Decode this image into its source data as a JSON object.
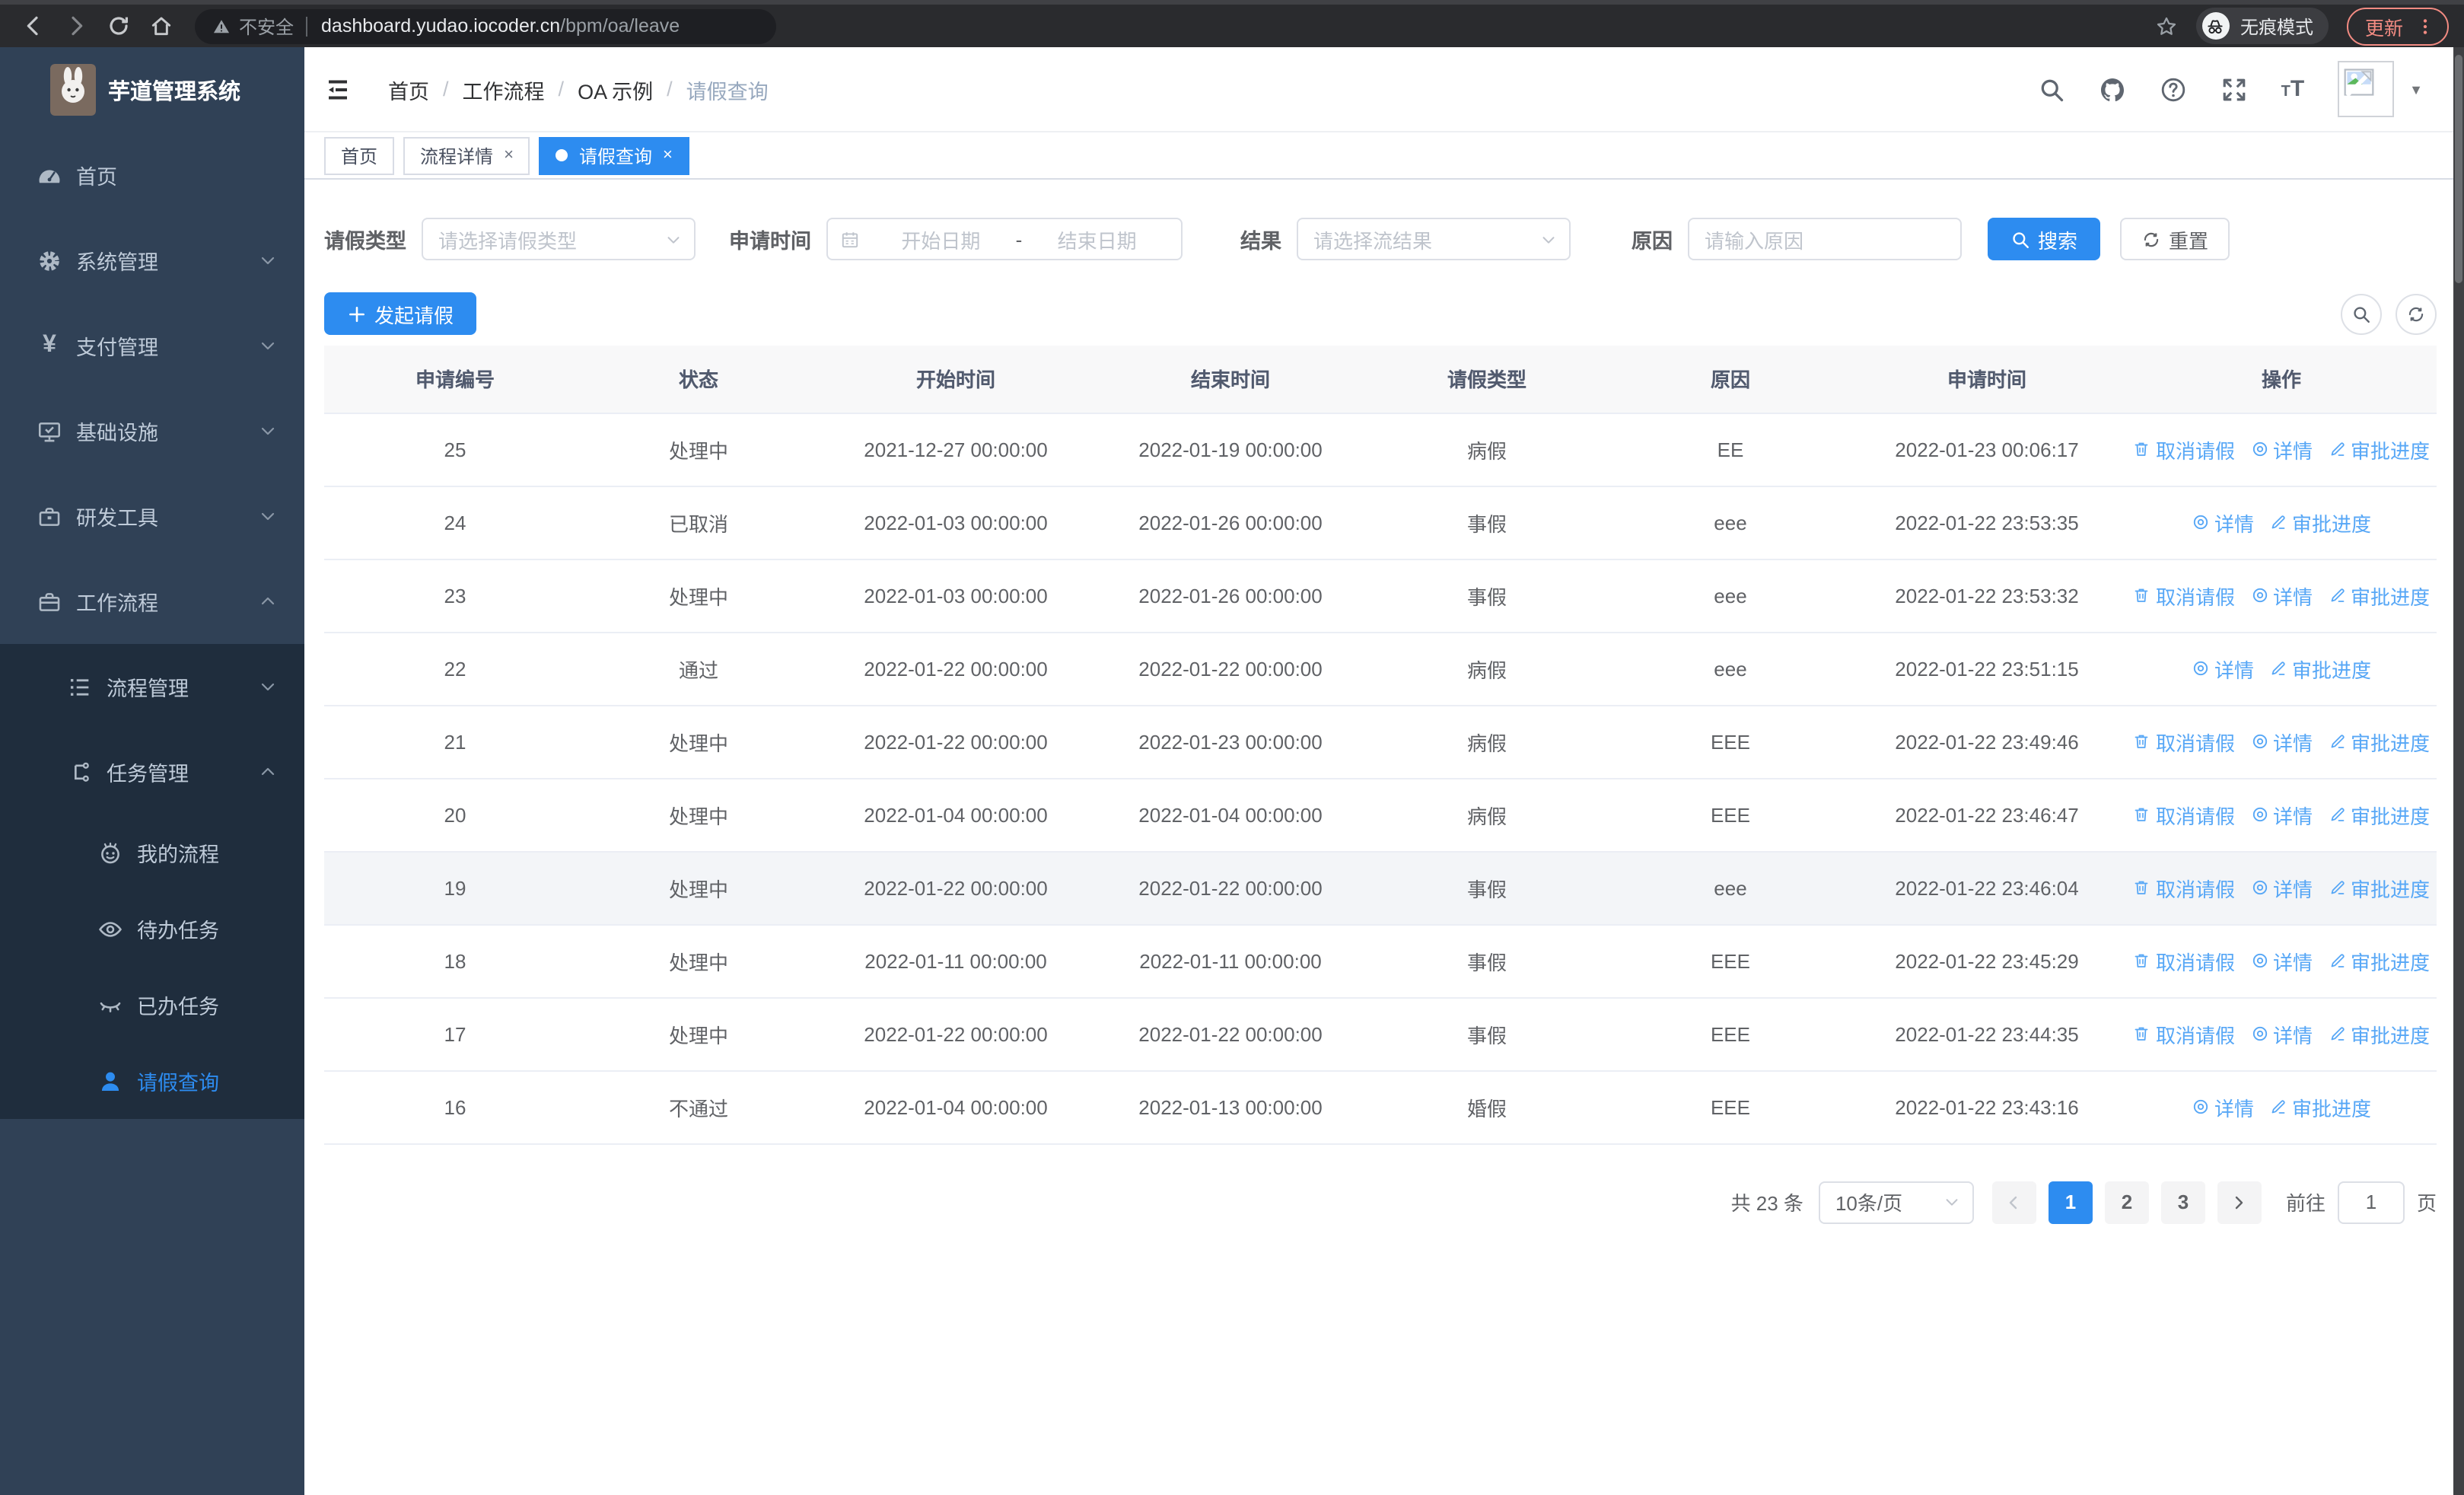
{
  "colors": {
    "primary": "#2d8cf0",
    "link_blue": "#57a7f6",
    "sidebar_bg": "#304156",
    "submenu_bg": "#1f2d3d",
    "update_accent": "#f28b82"
  },
  "browser": {
    "security_label": "不安全",
    "url_host": "dashboard.yudao.iocoder.cn",
    "url_path": "/bpm/oa/leave",
    "incognito_label": "无痕模式",
    "update_label": "更新"
  },
  "sidebar": {
    "title": "芋道管理系统",
    "items": [
      {
        "label": "首页",
        "icon": "gauge",
        "level": 1,
        "group": "top",
        "chevron": "",
        "active": false
      },
      {
        "label": "系统管理",
        "icon": "gear",
        "level": 1,
        "group": "top",
        "chevron": "down",
        "active": false
      },
      {
        "label": "支付管理",
        "icon": "yen",
        "level": 1,
        "group": "top",
        "chevron": "down",
        "active": false
      },
      {
        "label": "基础设施",
        "icon": "monitor",
        "level": 1,
        "group": "top",
        "chevron": "down",
        "active": false
      },
      {
        "label": "研发工具",
        "icon": "toolbox",
        "level": 1,
        "group": "top",
        "chevron": "down",
        "active": false
      },
      {
        "label": "工作流程",
        "icon": "briefcase",
        "level": 1,
        "group": "top",
        "chevron": "up",
        "active": false
      },
      {
        "label": "流程管理",
        "icon": "list",
        "level": 2,
        "group": "sub",
        "chevron": "down",
        "active": false
      },
      {
        "label": "任务管理",
        "icon": "flow",
        "level": 2,
        "group": "sub",
        "chevron": "up",
        "active": false
      },
      {
        "label": "我的流程",
        "icon": "robot",
        "level": 3,
        "group": "sub",
        "chevron": "",
        "active": false
      },
      {
        "label": "待办任务",
        "icon": "eye",
        "level": 3,
        "group": "sub",
        "chevron": "",
        "active": false
      },
      {
        "label": "已办任务",
        "icon": "eye-closed",
        "level": 3,
        "group": "sub",
        "chevron": "",
        "active": false
      },
      {
        "label": "请假查询",
        "icon": "user",
        "level": 3,
        "group": "sub",
        "chevron": "",
        "active": true
      }
    ]
  },
  "header": {
    "breadcrumb": [
      "首页",
      "工作流程",
      "OA 示例",
      "请假查询"
    ]
  },
  "tabs": [
    {
      "label": "首页",
      "closable": false,
      "active": false
    },
    {
      "label": "流程详情",
      "closable": true,
      "active": false
    },
    {
      "label": "请假查询",
      "closable": true,
      "active": true
    }
  ],
  "filters": {
    "leave_type_label": "请假类型",
    "leave_type_placeholder": "请选择请假类型",
    "apply_time_label": "申请时间",
    "start_date_placeholder": "开始日期",
    "date_separator": "-",
    "end_date_placeholder": "结束日期",
    "result_label": "结果",
    "result_placeholder": "请选择流结果",
    "reason_label": "原因",
    "reason_placeholder": "请输入原因",
    "search_label": "搜索",
    "reset_label": "重置"
  },
  "toolbar": {
    "create_label": "发起请假"
  },
  "table": {
    "columns": [
      "申请编号",
      "状态",
      "开始时间",
      "结束时间",
      "请假类型",
      "原因",
      "申请时间",
      "操作"
    ],
    "action_labels": {
      "cancel": "取消请假",
      "detail": "详情",
      "progress": "审批进度"
    },
    "rows": [
      {
        "id": "25",
        "status": "处理中",
        "start": "2021-12-27 00:00:00",
        "end": "2022-01-19 00:00:00",
        "type": "病假",
        "reason": "EE",
        "apply_time": "2022-01-23 00:06:17",
        "actions": [
          "cancel",
          "detail",
          "progress"
        ],
        "highlighted": false
      },
      {
        "id": "24",
        "status": "已取消",
        "start": "2022-01-03 00:00:00",
        "end": "2022-01-26 00:00:00",
        "type": "事假",
        "reason": "eee",
        "apply_time": "2022-01-22 23:53:35",
        "actions": [
          "detail",
          "progress"
        ],
        "highlighted": false
      },
      {
        "id": "23",
        "status": "处理中",
        "start": "2022-01-03 00:00:00",
        "end": "2022-01-26 00:00:00",
        "type": "事假",
        "reason": "eee",
        "apply_time": "2022-01-22 23:53:32",
        "actions": [
          "cancel",
          "detail",
          "progress"
        ],
        "highlighted": false
      },
      {
        "id": "22",
        "status": "通过",
        "start": "2022-01-22 00:00:00",
        "end": "2022-01-22 00:00:00",
        "type": "病假",
        "reason": "eee",
        "apply_time": "2022-01-22 23:51:15",
        "actions": [
          "detail",
          "progress"
        ],
        "highlighted": false
      },
      {
        "id": "21",
        "status": "处理中",
        "start": "2022-01-22 00:00:00",
        "end": "2022-01-23 00:00:00",
        "type": "病假",
        "reason": "EEE",
        "apply_time": "2022-01-22 23:49:46",
        "actions": [
          "cancel",
          "detail",
          "progress"
        ],
        "highlighted": false
      },
      {
        "id": "20",
        "status": "处理中",
        "start": "2022-01-04 00:00:00",
        "end": "2022-01-04 00:00:00",
        "type": "病假",
        "reason": "EEE",
        "apply_time": "2022-01-22 23:46:47",
        "actions": [
          "cancel",
          "detail",
          "progress"
        ],
        "highlighted": false
      },
      {
        "id": "19",
        "status": "处理中",
        "start": "2022-01-22 00:00:00",
        "end": "2022-01-22 00:00:00",
        "type": "事假",
        "reason": "eee",
        "apply_time": "2022-01-22 23:46:04",
        "actions": [
          "cancel",
          "detail",
          "progress"
        ],
        "highlighted": true
      },
      {
        "id": "18",
        "status": "处理中",
        "start": "2022-01-11 00:00:00",
        "end": "2022-01-11 00:00:00",
        "type": "事假",
        "reason": "EEE",
        "apply_time": "2022-01-22 23:45:29",
        "actions": [
          "cancel",
          "detail",
          "progress"
        ],
        "highlighted": false
      },
      {
        "id": "17",
        "status": "处理中",
        "start": "2022-01-22 00:00:00",
        "end": "2022-01-22 00:00:00",
        "type": "事假",
        "reason": "EEE",
        "apply_time": "2022-01-22 23:44:35",
        "actions": [
          "cancel",
          "detail",
          "progress"
        ],
        "highlighted": false
      },
      {
        "id": "16",
        "status": "不通过",
        "start": "2022-01-04 00:00:00",
        "end": "2022-01-13 00:00:00",
        "type": "婚假",
        "reason": "EEE",
        "apply_time": "2022-01-22 23:43:16",
        "actions": [
          "detail",
          "progress"
        ],
        "highlighted": false
      }
    ]
  },
  "pagination": {
    "total_label": "共 23 条",
    "page_size": "10条/页",
    "pages": [
      "1",
      "2",
      "3"
    ],
    "active_page": "1",
    "goto_label": "前往",
    "goto_value": "1",
    "page_unit": "页"
  }
}
